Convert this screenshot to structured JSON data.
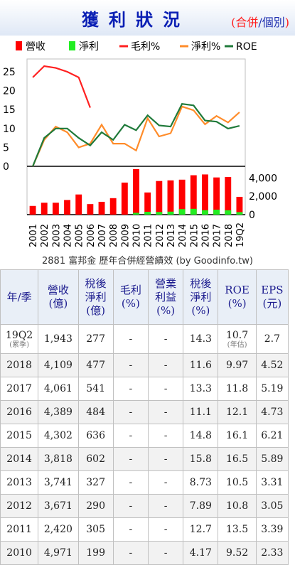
{
  "header": {
    "title": "獲利狀況",
    "sub_open": "(",
    "sub_red": "合併",
    "sub_slash": "/",
    "sub_blue": "個別",
    "sub_close": ")"
  },
  "legend": [
    {
      "label": "營收",
      "color": "#ff0000"
    },
    {
      "label": "淨利",
      "color": "#22ee22"
    },
    {
      "label": "毛利%",
      "color": "#ff2020"
    },
    {
      "label": "淨利%",
      "color": "#ff8c2a"
    },
    {
      "label": "ROE",
      "color": "#1f7a3a"
    }
  ],
  "chart_data": {
    "type": "bar+line",
    "categories": [
      "2001",
      "2002",
      "2003",
      "2004",
      "2005",
      "2006",
      "2007",
      "2008",
      "2009",
      "2010",
      "2011",
      "2012",
      "2013",
      "2014",
      "2015",
      "2016",
      "2017",
      "2018",
      "19Q2"
    ],
    "bars": [
      {
        "name": "營收",
        "values": [
          950,
          1300,
          1300,
          1600,
          2200,
          1150,
          1400,
          1800,
          3500,
          4971,
          2420,
          3671,
          3741,
          3818,
          4302,
          4389,
          4061,
          4109,
          1943
        ]
      },
      {
        "name": "淨利",
        "values": [
          0,
          0,
          0,
          0,
          0,
          0,
          0,
          0,
          0,
          199,
          305,
          290,
          327,
          602,
          636,
          484,
          541,
          477,
          277
        ]
      }
    ],
    "lines": [
      {
        "name": "毛利%",
        "values": [
          23.5,
          26.5,
          26,
          25,
          23.5,
          15.5,
          null,
          null,
          null,
          null,
          null,
          null,
          null,
          null,
          null,
          null,
          null,
          null,
          null
        ]
      },
      {
        "name": "淨利%",
        "values": [
          0,
          7,
          10.5,
          9,
          5,
          6,
          11,
          6,
          6,
          4.17,
          12.7,
          7.89,
          8.73,
          15.8,
          14.8,
          11.1,
          13.3,
          11.6,
          14.3
        ]
      },
      {
        "name": "ROE",
        "values": [
          0,
          7.5,
          10,
          10,
          7.5,
          5.5,
          9,
          7,
          11,
          9.52,
          13.5,
          10.8,
          10.5,
          16.5,
          16.1,
          12.1,
          11.8,
          9.97,
          10.7
        ]
      }
    ],
    "left_axis_ticks": [
      "25",
      "20",
      "15",
      "10",
      "5",
      "0"
    ],
    "right_axis_ticks": [
      "4,000",
      "2,000",
      "0"
    ],
    "left_range": [
      0,
      28
    ],
    "right_range": [
      0,
      5200
    ]
  },
  "caption": "2881 富邦金 歷年合併經營績效 (by Goodinfo.tw)",
  "table": {
    "headers": [
      "年/季",
      "營收\n(億)",
      "稅後\n淨利\n(億)",
      "毛利\n(%)",
      "營業\n利益\n(%)",
      "稅後\n淨利\n(%)",
      "ROE\n(%)",
      "EPS\n(元)"
    ],
    "rows": [
      {
        "period": "19Q2",
        "period_note": "(累季)",
        "revenue": "1,943",
        "net": "277",
        "gross": "-",
        "op": "-",
        "netpct": "14.3",
        "roe": "10.7",
        "roe_note": "(年估)",
        "eps": "2.7"
      },
      {
        "period": "2018",
        "revenue": "4,109",
        "net": "477",
        "gross": "-",
        "op": "-",
        "netpct": "11.6",
        "roe": "9.97",
        "eps": "4.52"
      },
      {
        "period": "2017",
        "revenue": "4,061",
        "net": "541",
        "gross": "-",
        "op": "-",
        "netpct": "13.3",
        "roe": "11.8",
        "eps": "5.19"
      },
      {
        "period": "2016",
        "revenue": "4,389",
        "net": "484",
        "gross": "-",
        "op": "-",
        "netpct": "11.1",
        "roe": "12.1",
        "eps": "4.73"
      },
      {
        "period": "2015",
        "revenue": "4,302",
        "net": "636",
        "gross": "-",
        "op": "-",
        "netpct": "14.8",
        "roe": "16.1",
        "eps": "6.21"
      },
      {
        "period": "2014",
        "revenue": "3,818",
        "net": "602",
        "gross": "-",
        "op": "-",
        "netpct": "15.8",
        "roe": "16.5",
        "eps": "5.89"
      },
      {
        "period": "2013",
        "revenue": "3,741",
        "net": "327",
        "gross": "-",
        "op": "-",
        "netpct": "8.73",
        "roe": "10.5",
        "eps": "3.31"
      },
      {
        "period": "2012",
        "revenue": "3,671",
        "net": "290",
        "gross": "-",
        "op": "-",
        "netpct": "7.89",
        "roe": "10.8",
        "eps": "3.05"
      },
      {
        "period": "2011",
        "revenue": "2,420",
        "net": "305",
        "gross": "-",
        "op": "-",
        "netpct": "12.7",
        "roe": "13.5",
        "eps": "3.39"
      },
      {
        "period": "2010",
        "revenue": "4,971",
        "net": "199",
        "gross": "-",
        "op": "-",
        "netpct": "4.17",
        "roe": "9.52",
        "eps": "2.33"
      }
    ]
  }
}
